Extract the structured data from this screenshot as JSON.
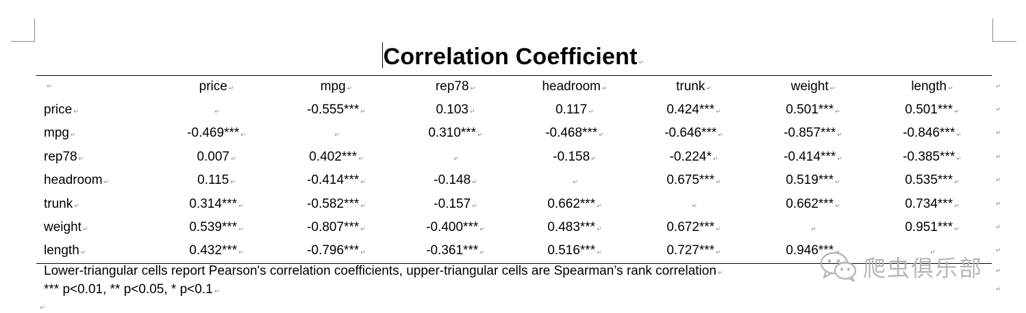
{
  "document": {
    "title": "Correlation Coefficient",
    "paragraph_mark": "↵",
    "columns": [
      "price",
      "mpg",
      "rep78",
      "headroom",
      "trunk",
      "weight",
      "length"
    ],
    "rows": [
      {
        "label": "price",
        "cells": [
          "",
          "-0.555***",
          "0.103",
          "0.117",
          "0.424***",
          "0.501***",
          "0.501***"
        ]
      },
      {
        "label": "mpg",
        "cells": [
          "-0.469***",
          "",
          "0.310***",
          "-0.468***",
          "-0.646***",
          "-0.857***",
          "-0.846***"
        ]
      },
      {
        "label": "rep78",
        "cells": [
          "0.007",
          "0.402***",
          "",
          "-0.158",
          "-0.224*",
          "-0.414***",
          "-0.385***"
        ]
      },
      {
        "label": "headroom",
        "cells": [
          "0.115",
          "-0.414***",
          "-0.148",
          "",
          "0.675***",
          "0.519***",
          "0.535***"
        ]
      },
      {
        "label": "trunk",
        "cells": [
          "0.314***",
          "-0.582***",
          "-0.157",
          "0.662***",
          "",
          "0.662***",
          "0.734***"
        ]
      },
      {
        "label": "weight",
        "cells": [
          "0.539***",
          "-0.807***",
          "-0.400***",
          "0.483***",
          "0.672***",
          "",
          "0.951***"
        ]
      },
      {
        "label": "length",
        "cells": [
          "0.432***",
          "-0.796***",
          "-0.361***",
          "0.516***",
          "0.727***",
          "0.946***",
          ""
        ]
      }
    ],
    "note": "Lower-triangular cells report Pearson's correlation coefficients, upper-triangular cells are Spearman’s rank correlation",
    "significance": "*** p<0.01, ** p<0.05, * p<0.1"
  },
  "watermark": {
    "text": "爬虫俱乐部",
    "icon": "wechat-icon"
  }
}
